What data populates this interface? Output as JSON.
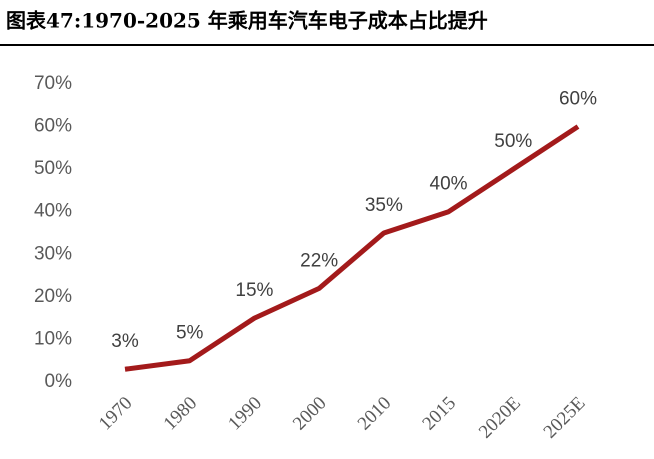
{
  "chart_data": {
    "type": "line",
    "title": "图表47:1970-2025 年乘用车汽车电子成本占比提升",
    "categories": [
      "1970",
      "1980",
      "1990",
      "2000",
      "2010",
      "2015",
      "2020E",
      "2025E"
    ],
    "values": [
      3,
      5,
      15,
      22,
      35,
      40,
      50,
      60
    ],
    "value_labels": [
      "3%",
      "5%",
      "15%",
      "22%",
      "35%",
      "40%",
      "50%",
      "60%"
    ],
    "color": "#a31a1b",
    "ylim": [
      0,
      70
    ],
    "yticks": [
      {
        "value": 0,
        "label": "0%"
      },
      {
        "value": 10,
        "label": "10%"
      },
      {
        "value": 20,
        "label": "20%"
      },
      {
        "value": 30,
        "label": "30%"
      },
      {
        "value": 40,
        "label": "40%"
      },
      {
        "value": 50,
        "label": "50%"
      },
      {
        "value": 60,
        "label": "60%"
      },
      {
        "value": 70,
        "label": "70%"
      }
    ]
  }
}
